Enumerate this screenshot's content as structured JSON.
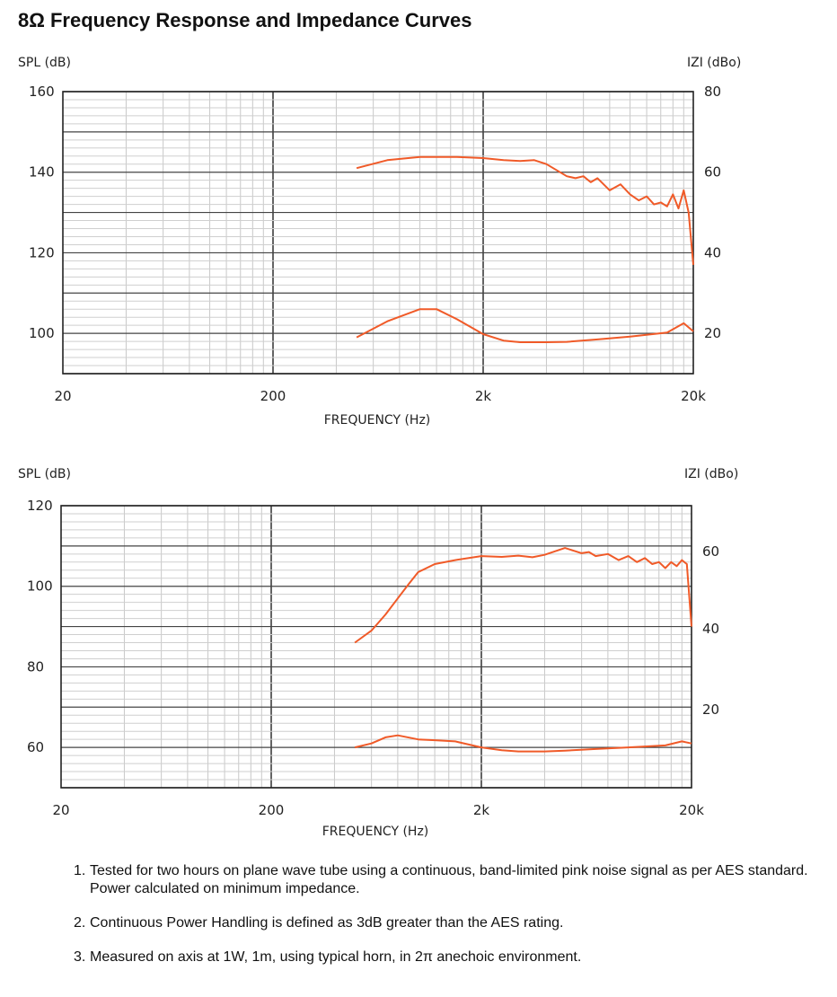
{
  "page": {
    "title": "8Ω Frequency Response and Impedance Curves"
  },
  "chart_data": [
    {
      "type": "line",
      "title": "",
      "ylabel": "SPL (dB)",
      "y2label": "IZI (dBo)",
      "xlabel": "FREQUENCY (Hz)",
      "x_scale": "log",
      "xlim": [
        20,
        20000
      ],
      "ylim": [
        90,
        160
      ],
      "y2lim": [
        10,
        80
      ],
      "x_ticks": [
        "20",
        "200",
        "2k",
        "20k"
      ],
      "y_ticks": [
        160,
        140,
        120,
        100
      ],
      "y2_ticks": [
        80,
        60,
        40,
        20
      ],
      "grid": true,
      "series": [
        {
          "color": "#f05a28",
          "x": [
            500,
            700,
            1000,
            1500,
            2000,
            2500,
            3000,
            3500,
            4000,
            5000,
            5500,
            6000,
            6500,
            7000,
            8000,
            9000,
            10000,
            11000,
            12000,
            13000,
            14000,
            15000,
            16000,
            17000,
            18000,
            19000,
            20000
          ],
          "y": [
            141,
            143,
            143.8,
            143.8,
            143.5,
            143,
            142.8,
            143,
            142,
            139,
            138.5,
            139,
            137.5,
            138.5,
            135.5,
            137,
            134.5,
            133,
            134,
            132,
            132.5,
            131.5,
            134.5,
            131,
            135.5,
            130,
            117
          ]
        },
        {
          "color": "#f05a28",
          "x": [
            500,
            700,
            1000,
            1200,
            1500,
            2000,
            2500,
            3000,
            4000,
            5000,
            7000,
            10000,
            15000,
            18000,
            20000
          ],
          "y": [
            99,
            103,
            106,
            106,
            103.5,
            99.8,
            98.2,
            97.8,
            97.8,
            97.9,
            98.5,
            99.2,
            100.2,
            102.5,
            100.5
          ]
        }
      ]
    },
    {
      "type": "line",
      "title": "",
      "ylabel": "SPL (dB)",
      "y2label": "IZI (dBo)",
      "xlabel": "FREQUENCY (Hz)",
      "x_scale": "log",
      "xlim": [
        20,
        20000
      ],
      "ylim": [
        50,
        120
      ],
      "y2_ticks": [
        60,
        40,
        20
      ],
      "x_ticks": [
        "20",
        "200",
        "2k",
        "20k"
      ],
      "y_ticks": [
        120,
        100,
        80,
        60
      ],
      "grid": true,
      "series": [
        {
          "color": "#f05a28",
          "x": [
            500,
            600,
            700,
            800,
            900,
            1000,
            1200,
            1500,
            2000,
            2500,
            3000,
            3500,
            4000,
            5000,
            6000,
            6500,
            7000,
            8000,
            9000,
            10000,
            11000,
            12000,
            13000,
            14000,
            15000,
            16000,
            17000,
            18000,
            19000,
            20000
          ],
          "y": [
            86,
            89,
            93,
            97,
            100.5,
            103.5,
            105.5,
            106.5,
            107.5,
            107.3,
            107.6,
            107.2,
            107.8,
            109.5,
            108.2,
            108.5,
            107.5,
            108,
            106.5,
            107.5,
            106,
            107,
            105.5,
            106,
            104.5,
            106,
            105,
            106.5,
            105.5,
            90
          ]
        },
        {
          "color": "#f05a28",
          "x": [
            500,
            600,
            700,
            800,
            1000,
            1200,
            1500,
            2000,
            2500,
            3000,
            4000,
            5000,
            7000,
            10000,
            15000,
            18000,
            20000
          ],
          "y": [
            60,
            61,
            62.5,
            63,
            62,
            61.8,
            61.5,
            60,
            59.3,
            59,
            59,
            59.2,
            59.6,
            60,
            60.5,
            61.5,
            61
          ]
        }
      ]
    }
  ],
  "notes": [
    {
      "num": "1.",
      "text": "Tested for two hours on plane wave tube using a continuous, band-limited pink noise signal as per AES standard. Power calculated on minimum impedance."
    },
    {
      "num": "2.",
      "text": "Continuous Power Handling is defined as 3dB greater than the AES rating."
    },
    {
      "num": "3.",
      "text": "Measured on axis at 1W, 1m, using typical horn, in 2π anechoic environment."
    }
  ]
}
